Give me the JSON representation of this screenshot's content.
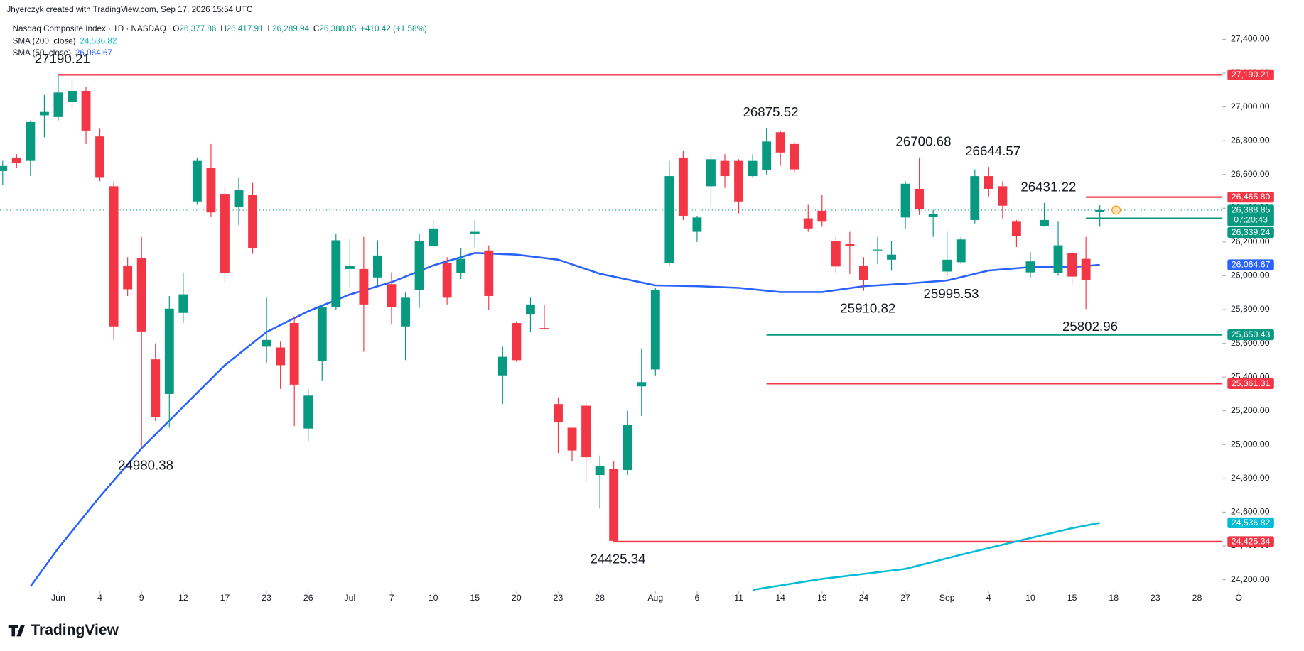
{
  "header": {
    "credit": "Jhyerczyk created with TradingView.com, Sep 17, 2026 15:54 UTC"
  },
  "footer": {
    "brand": "TradingView"
  },
  "chart_data": {
    "type": "candlestick",
    "title": "Nasdaq Composite Index · 1D · NASDAQ",
    "ohlc_legend": [
      {
        "key": "O",
        "value": "26,377.86"
      },
      {
        "key": "H",
        "value": "26,417.91"
      },
      {
        "key": "L",
        "value": "26,289.94"
      },
      {
        "key": "C",
        "value": "26,388.85"
      }
    ],
    "change": "+410.42 (+1.58%)",
    "up_color": "#089981",
    "down_color": "#f23645",
    "grid": false,
    "categories": [
      "May 26",
      "May 27",
      "May 28",
      "May 29",
      "Jun 1",
      "Jun 2",
      "Jun 3",
      "Jun 4",
      "Jun 5",
      "Jun 8",
      "Jun 9",
      "Jun 10",
      "Jun 11",
      "Jun 12",
      "Jun 15",
      "Jun 16",
      "Jun 17",
      "Jun 18",
      "Jun 22",
      "Jun 23",
      "Jun 24",
      "Jun 25",
      "Jun 26",
      "Jun 29",
      "Jun 30",
      "Jul 1",
      "Jul 2",
      "Jul 6",
      "Jul 7",
      "Jul 8",
      "Jul 9",
      "Jul 10",
      "Jul 13",
      "Jul 14",
      "Jul 15",
      "Jul 16",
      "Jul 17",
      "Jul 20",
      "Jul 21",
      "Jul 22",
      "Jul 23",
      "Jul 24",
      "Jul 27",
      "Jul 28",
      "Jul 29",
      "Jul 30",
      "Jul 31",
      "Aug 3",
      "Aug 4",
      "Aug 5",
      "Aug 6",
      "Aug 7",
      "Aug 10",
      "Aug 11",
      "Aug 12",
      "Aug 13",
      "Aug 14",
      "Aug 17",
      "Aug 18",
      "Aug 19",
      "Aug 20",
      "Aug 21",
      "Aug 24",
      "Aug 25",
      "Aug 26",
      "Aug 27",
      "Aug 28",
      "Aug 31",
      "Sep 1",
      "Sep 2",
      "Sep 3",
      "Sep 4",
      "Sep 8",
      "Sep 9",
      "Sep 10",
      "Sep 11",
      "Sep 14",
      "Sep 15",
      "Sep 16",
      "Sep 17",
      "Sep 18",
      "Sep 21",
      "Sep 22",
      "Sep 23",
      "Sep 24",
      "Sep 25",
      "Sep 28",
      "Sep 29",
      "Sep 30",
      "Oct 1"
    ],
    "open": [
      26620,
      26700,
      26680,
      26950,
      26940,
      27030,
      27095,
      26825,
      26530,
      26060,
      26105,
      25505,
      25300,
      25780,
      26440,
      26640,
      26485,
      26405,
      26480,
      25580,
      25575,
      25720,
      25095,
      25495,
      25815,
      26040,
      26040,
      25990,
      25950,
      25700,
      25915,
      26175,
      26075,
      26015,
      26250,
      26150,
      25410,
      25720,
      25770,
      25690,
      25240,
      25100,
      25230,
      24820,
      24855,
      24850,
      25345,
      25445,
      26075,
      26700,
      26260,
      26530,
      26680,
      26680,
      26590,
      26625,
      26850,
      26780,
      26340,
      26385,
      26205,
      26190,
      26060,
      26150,
      26095,
      26345,
      26515,
      26350,
      26025,
      26080,
      26330,
      26590,
      26530,
      26320,
      26020,
      26295,
      26015,
      26135,
      26100,
      26377.86,
      null,
      null,
      null,
      null,
      null,
      null,
      null,
      null,
      null,
      null
    ],
    "high": [
      26680,
      26720,
      26920,
      27070,
      27190.21,
      27165,
      27120,
      26870,
      26560,
      26110,
      26230,
      25600,
      25880,
      26020,
      26700,
      26780,
      26520,
      26580,
      26550,
      25870,
      25610,
      25760,
      25330,
      25830,
      26250,
      26220,
      26230,
      26210,
      26020,
      25900,
      26250,
      26330,
      26110,
      26165,
      26330,
      26180,
      25580,
      25730,
      25870,
      25830,
      25280,
      25100,
      25250,
      24935,
      24900,
      25200,
      25570,
      25930,
      26680,
      26740,
      26355,
      26720,
      26720,
      26690,
      26720,
      26875.52,
      26860,
      26790,
      26420,
      26480,
      26230,
      26260,
      26110,
      26230,
      26205,
      26560,
      26700.68,
      26390,
      26260,
      26230,
      26630,
      26644.57,
      26560,
      26330,
      26140,
      26431.22,
      26320,
      26150,
      26230,
      26417.91,
      null,
      null,
      null,
      null,
      null,
      null,
      null,
      null,
      null,
      null
    ],
    "low": [
      26540,
      26640,
      26590,
      26820,
      26920,
      26990,
      26780,
      26560,
      25620,
      25880,
      24980.38,
      25140,
      25100,
      25720,
      26420,
      26350,
      25960,
      26300,
      26130,
      25480,
      25330,
      25110,
      25020,
      25380,
      25800,
      25930,
      25550,
      25940,
      25710,
      25500,
      25810,
      26160,
      25830,
      25980,
      26170,
      25800,
      25240,
      25490,
      25670,
      25680,
      24950,
      24900,
      24780,
      24620,
      24425.34,
      24820,
      25170,
      25410,
      26060,
      26330,
      26200,
      26410,
      26520,
      26370,
      26580,
      26600,
      26650,
      26610,
      26260,
      26290,
      26020,
      26010,
      25910.82,
      26070,
      26030,
      26280,
      26360,
      26230,
      25995.53,
      26070,
      26310,
      26470,
      26340,
      26170,
      25990,
      26290,
      26000,
      25950,
      25802.96,
      26289.94,
      null,
      null,
      null,
      null,
      null,
      null,
      null,
      null,
      null,
      null
    ],
    "close": [
      26650,
      26670,
      26910,
      26970,
      27085,
      27095,
      26860,
      26580,
      25700,
      25920,
      25670,
      25165,
      25805,
      25890,
      26680,
      26375,
      26015,
      26510,
      26165,
      25620,
      25470,
      25355,
      25290,
      25815,
      26210,
      26060,
      25830,
      26120,
      25815,
      25870,
      26205,
      26280,
      25870,
      26100,
      26260,
      25880,
      25520,
      25500,
      25830,
      25685,
      25135,
      24965,
      24925,
      24875,
      24430,
      25115,
      25370,
      25915,
      26590,
      26355,
      26345,
      26690,
      26590,
      26440,
      26680,
      26795,
      26730,
      26630,
      26280,
      26320,
      26055,
      26175,
      25975,
      26155,
      26125,
      26545,
      26395,
      26365,
      26095,
      26215,
      26590,
      26515,
      26415,
      26235,
      26085,
      26330,
      26180,
      25995,
      25975,
      26388.85,
      null,
      null,
      null,
      null,
      null,
      null,
      null,
      null,
      null,
      null
    ],
    "ylim": [
      24130,
      27510
    ],
    "yticks": [
      {
        "value": 24200,
        "label": "24,200.00"
      },
      {
        "value": 24400,
        "label": "24,400.00"
      },
      {
        "value": 24600,
        "label": "24,600.00"
      },
      {
        "value": 24800,
        "label": "24,800.00"
      },
      {
        "value": 25000,
        "label": "25,000.00"
      },
      {
        "value": 25200,
        "label": "25,200.00"
      },
      {
        "value": 25400,
        "label": "25,400.00"
      },
      {
        "value": 25600,
        "label": "25,600.00"
      },
      {
        "value": 25800,
        "label": "25,800.00"
      },
      {
        "value": 26000,
        "label": "26,000.00"
      },
      {
        "value": 26200,
        "label": "26,200.00"
      },
      {
        "value": 26400,
        "label": "26,400.00"
      },
      {
        "value": 26600,
        "label": "26,600.00"
      },
      {
        "value": 26800,
        "label": "26,800.00"
      },
      {
        "value": 27000,
        "label": "27,000.00"
      },
      {
        "value": 27200,
        "label": "27,200.00"
      },
      {
        "value": 27400,
        "label": "27,400.00"
      }
    ],
    "xticks": [
      {
        "value": "Jun 1",
        "label": "Jun"
      },
      {
        "value": "Jun 4",
        "label": "4"
      },
      {
        "value": "Jun 9",
        "label": "9"
      },
      {
        "value": "Jun 12",
        "label": "12"
      },
      {
        "value": "Jun 17",
        "label": "17"
      },
      {
        "value": "Jun 23",
        "label": "23"
      },
      {
        "value": "Jun 26",
        "label": "26"
      },
      {
        "value": "Jul 1",
        "label": "Jul"
      },
      {
        "value": "Jul 7",
        "label": "7"
      },
      {
        "value": "Jul 10",
        "label": "10"
      },
      {
        "value": "Jul 15",
        "label": "15"
      },
      {
        "value": "Jul 20",
        "label": "20"
      },
      {
        "value": "Jul 23",
        "label": "23"
      },
      {
        "value": "Jul 28",
        "label": "28"
      },
      {
        "value": "Aug 3",
        "label": "Aug"
      },
      {
        "value": "Aug 6",
        "label": "6"
      },
      {
        "value": "Aug 11",
        "label": "11"
      },
      {
        "value": "Aug 14",
        "label": "14"
      },
      {
        "value": "Aug 19",
        "label": "19"
      },
      {
        "value": "Aug 24",
        "label": "24"
      },
      {
        "value": "Aug 27",
        "label": "27"
      },
      {
        "value": "Sep 1",
        "label": "Sep"
      },
      {
        "value": "Sep 4",
        "label": "4"
      },
      {
        "value": "Sep 10",
        "label": "10"
      },
      {
        "value": "Sep 15",
        "label": "15"
      },
      {
        "value": "Sep 18",
        "label": "18"
      },
      {
        "value": "Sep 23",
        "label": "23"
      },
      {
        "value": "Sep 28",
        "label": "28"
      },
      {
        "value": "Oct 1",
        "label": "O"
      }
    ],
    "overlays": [
      {
        "name": "SMA (200, close)",
        "color": "#00bcd4",
        "last_label": "24,536.82",
        "x": [
          "Aug 12",
          "Aug 19",
          "Aug 27",
          "Sep 2",
          "Sep 9",
          "Sep 15",
          "Sep 17"
        ],
        "values": [
          24140,
          24205,
          24264,
          24348,
          24427,
          24505,
          24536.82
        ]
      },
      {
        "name": "SMA (50, close)",
        "color": "#2962ff",
        "last_label": "26,064.67",
        "x": [
          "May 28",
          "Jun 1",
          "Jun 4",
          "Jun 9",
          "Jun 12",
          "Jun 17",
          "Jun 23",
          "Jun 26",
          "Jul 1",
          "Jul 7",
          "Jul 10",
          "Jul 15",
          "Jul 20",
          "Jul 23",
          "Jul 28",
          "Aug 3",
          "Aug 6",
          "Aug 11",
          "Aug 14",
          "Aug 19",
          "Aug 24",
          "Aug 27",
          "Sep 1",
          "Sep 4",
          "Sep 10",
          "Sep 15",
          "Sep 17"
        ],
        "values": [
          24160,
          24387,
          24692,
          24978,
          25224,
          25470,
          25667,
          25790,
          25889,
          25962,
          26061,
          26135,
          26125,
          26095,
          26012,
          25943,
          25938,
          25928,
          25903,
          25903,
          25938,
          25953,
          25972,
          26031,
          26051,
          26051,
          26064.67
        ]
      }
    ],
    "levels": [
      {
        "value": 27190.21,
        "label": "27,190.21",
        "color": "#f23645",
        "from": "Jun 1"
      },
      {
        "value": 26465.8,
        "label": "26,465.80",
        "color": "#f23645",
        "from": "Sep 16"
      },
      {
        "value": 26339.24,
        "label": "26,339.24",
        "color": "#089981",
        "from": "Sep 16"
      },
      {
        "value": 25650.43,
        "label": "25,650.43",
        "color": "#089981",
        "from": "Aug 13"
      },
      {
        "value": 25361.31,
        "label": "25,361.31",
        "color": "#f23645",
        "from": "Aug 13"
      },
      {
        "value": 24425.34,
        "label": "24,425.34",
        "color": "#f23645",
        "from": "Jul 29"
      }
    ],
    "last_price": {
      "value": 26388.85,
      "label": "26,388.85",
      "countdown": "07:20:43",
      "color": "#089981"
    },
    "annotations": [
      {
        "text": "27190.21",
        "date": "Jun 1",
        "position": "above"
      },
      {
        "text": "26875.52",
        "date": "Aug 13",
        "position": "above"
      },
      {
        "text": "26700.68",
        "date": "Aug 28",
        "position": "above"
      },
      {
        "text": "26644.57",
        "date": "Sep 4",
        "position": "above"
      },
      {
        "text": "26431.22",
        "date": "Sep 11",
        "position": "above"
      },
      {
        "text": "24980.38",
        "date": "Jun 9",
        "position": "below"
      },
      {
        "text": "24425.34",
        "date": "Jul 29",
        "position": "below"
      },
      {
        "text": "25910.82",
        "date": "Aug 24",
        "position": "below"
      },
      {
        "text": "25995.53",
        "date": "Sep 1",
        "position": "below"
      },
      {
        "text": "25802.96",
        "date": "Sep 16",
        "position": "below"
      }
    ]
  }
}
